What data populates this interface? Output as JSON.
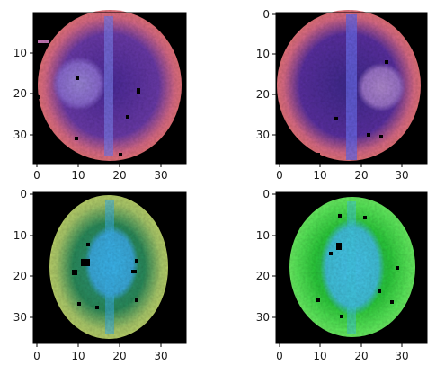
{
  "figure": {
    "layout": "2x2 grid of image panels",
    "panels": [
      {
        "id": "top-left",
        "image_description": "axial brain MRI slice in false color (pink/orange rim, purple interior), round bright lesion in left hemisphere",
        "palette": {
          "rim": "#f07a6a",
          "interior": "#6a3aa8",
          "lesion": "#9b7ad8",
          "midline": "#7a7ae8",
          "background": "#000000"
        },
        "x_ticks": [
          "0",
          "10",
          "20",
          "30"
        ],
        "y_ticks": [
          "10",
          "20",
          "30"
        ]
      },
      {
        "id": "top-right",
        "image_description": "axial brain MRI slice in false color (pink/orange rim, purple interior), round lesion in right hemisphere",
        "palette": {
          "rim": "#f07a6a",
          "interior": "#5a30a0",
          "lesion": "#a07ad0",
          "midline": "#6a6ae8",
          "background": "#000000"
        },
        "x_ticks": [
          "0",
          "10",
          "20",
          "30"
        ],
        "y_ticks": [
          "0",
          "10",
          "20",
          "30"
        ]
      },
      {
        "id": "bottom-left",
        "image_description": "axial brain MRI slice in false color (yellow-green rim, green and cyan interior, dark spots)",
        "palette": {
          "rim": "#c8d86a",
          "interior": "#2a8a5a",
          "core": "#3ab0e8",
          "background": "#000000"
        },
        "x_ticks": [
          "0",
          "10",
          "20",
          "30"
        ],
        "y_ticks": [
          "0",
          "10",
          "20",
          "30"
        ]
      },
      {
        "id": "bottom-right",
        "image_description": "axial brain MRI slice in false color (bright green rim, green and cyan interior, dark spots)",
        "palette": {
          "rim": "#6af05a",
          "interior": "#2ac83a",
          "core": "#40c8e0",
          "background": "#000000"
        },
        "x_ticks": [
          "0",
          "10",
          "20",
          "30"
        ],
        "y_ticks": [
          "0",
          "10",
          "20",
          "30"
        ]
      }
    ]
  }
}
